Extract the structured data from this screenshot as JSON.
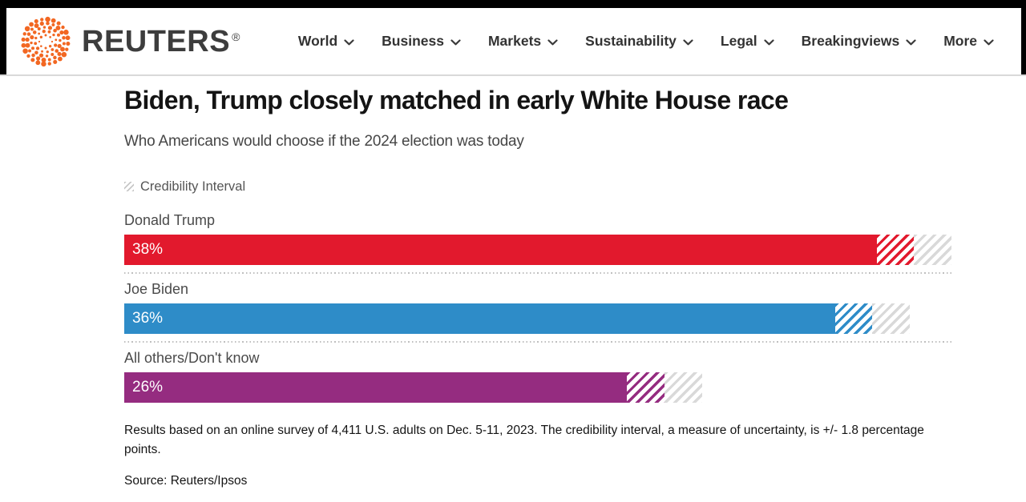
{
  "header": {
    "brand": "REUTERS",
    "registered_mark": "®",
    "nav_items": [
      {
        "label": "World"
      },
      {
        "label": "Business"
      },
      {
        "label": "Markets"
      },
      {
        "label": "Sustainability"
      },
      {
        "label": "Legal"
      },
      {
        "label": "Breakingviews"
      },
      {
        "label": "More"
      }
    ]
  },
  "article": {
    "title": "Biden, Trump closely matched in early White House race",
    "subtitle": "Who Americans would choose if the 2024 election was today"
  },
  "chart_data": {
    "type": "bar",
    "orientation": "horizontal",
    "title": "Biden, Trump closely matched in early White House race",
    "subtitle": "Who Americans would choose if the 2024 election was today",
    "legend_label": "Credibility Interval",
    "categories": [
      "Donald Trump",
      "Joe Biden",
      "All others/Don't know"
    ],
    "values": [
      38,
      36,
      26
    ],
    "value_labels": [
      "38%",
      "36%",
      "26%"
    ],
    "credibility_interval": 1.8,
    "axis_max": 39.8,
    "bar_colors": [
      "#e2192d",
      "#2e8cc8",
      "#952c80"
    ],
    "interval_gray": "#d9d9d9",
    "baseline_rows": [
      true,
      true,
      false
    ]
  },
  "footnote": {
    "text": "Results based on an online survey of 4,411 U.S. adults on Dec. 5-11, 2023. The credibility interval, a measure of uncertainty, is +/- 1.8 percentage points.",
    "source": "Source: Reuters/Ipsos"
  },
  "colors": {
    "brand_orange": "#f26722",
    "nav_text": "#333333",
    "frame_black": "#000000",
    "divider_gray": "#d9d9d9"
  }
}
